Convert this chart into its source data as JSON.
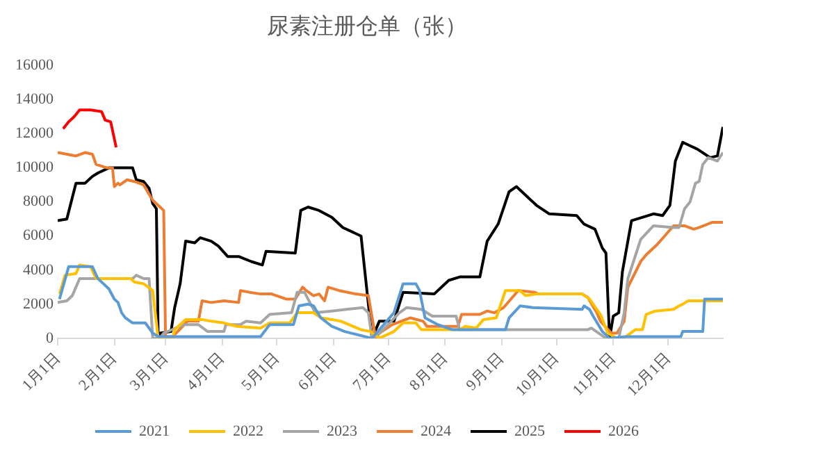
{
  "chart_data": {
    "type": "line",
    "title": "尿素注册仓单（张）",
    "xlim": [
      "--01-01",
      "--12-31"
    ],
    "xticks": [
      {
        "value": "--01-01",
        "label": "1月1日"
      },
      {
        "value": "--02-01",
        "label": "2月1日"
      },
      {
        "value": "--03-01",
        "label": "3月1日"
      },
      {
        "value": "--04-01",
        "label": "4月1日"
      },
      {
        "value": "--05-01",
        "label": "5月1日"
      },
      {
        "value": "--06-01",
        "label": "6月1日"
      },
      {
        "value": "--07-01",
        "label": "7月1日"
      },
      {
        "value": "--08-01",
        "label": "8月1日"
      },
      {
        "value": "--09-01",
        "label": "9月1日"
      },
      {
        "value": "--10-01",
        "label": "10月1日"
      },
      {
        "value": "--11-01",
        "label": "11月1日"
      },
      {
        "value": "--12-01",
        "label": "12月1日"
      }
    ],
    "ylim": [
      0,
      16000
    ],
    "yticks": [
      0,
      2000,
      4000,
      6000,
      8000,
      10000,
      12000,
      14000,
      16000
    ],
    "grid": false,
    "legend": "bottom",
    "line_style": "solid",
    "series": [
      {
        "name": "2021",
        "color": "#5b9bd5",
        "x": [
          "--01-02",
          "--01-07",
          "--01-20",
          "--01-23",
          "--01-26",
          "--01-29",
          "--02-01",
          "--02-03",
          "--02-05",
          "--02-07",
          "--02-11",
          "--02-18",
          "--02-22",
          "--02-25",
          "--04-22",
          "--04-27",
          "--05-10",
          "--05-13",
          "--05-18",
          "--05-21",
          "--05-25",
          "--05-31",
          "--06-07",
          "--06-18",
          "--06-22",
          "--07-04",
          "--07-09",
          "--07-16",
          "--07-18",
          "--07-21",
          "--07-28",
          "--08-05",
          "--09-03",
          "--09-05",
          "--09-11",
          "--09-18",
          "--10-15",
          "--10-16",
          "--10-19",
          "--10-21",
          "--10-26",
          "--10-30",
          "--11-08",
          "--12-08",
          "--12-09",
          "--12-20",
          "--12-21",
          "--12-31"
        ],
        "values": [
          2300,
          4200,
          4200,
          3500,
          3200,
          2900,
          2300,
          2100,
          1500,
          1200,
          900,
          900,
          300,
          100,
          100,
          800,
          800,
          1900,
          2000,
          1900,
          1200,
          700,
          400,
          100,
          0,
          1500,
          3200,
          3200,
          2800,
          1200,
          800,
          500,
          500,
          1200,
          1900,
          1800,
          1700,
          1900,
          1700,
          1300,
          400,
          0,
          100,
          100,
          400,
          400,
          2300,
          2300
        ]
      },
      {
        "name": "2022",
        "color": "#ffc000",
        "x": [
          "--01-02",
          "--01-05",
          "--01-11",
          "--01-13",
          "--01-19",
          "--01-22",
          "--02-10",
          "--02-12",
          "--02-17",
          "--02-22",
          "--02-25",
          "--03-05",
          "--03-06",
          "--03-12",
          "--03-21",
          "--03-26",
          "--04-02",
          "--04-09",
          "--04-22",
          "--04-27",
          "--05-08",
          "--05-12",
          "--05-21",
          "--05-25",
          "--05-31",
          "--06-05",
          "--06-16",
          "--06-21",
          "--06-26",
          "--07-04",
          "--07-09",
          "--07-16",
          "--07-19",
          "--08-09",
          "--08-12",
          "--08-18",
          "--08-22",
          "--08-29",
          "--09-03",
          "--09-11",
          "--09-14",
          "--09-20",
          "--10-15",
          "--10-19",
          "--10-23",
          "--10-25",
          "--10-29",
          "--11-03",
          "--11-08",
          "--11-13",
          "--11-17",
          "--11-19",
          "--11-24",
          "--12-04",
          "--12-07",
          "--12-09",
          "--12-12",
          "--12-31"
        ],
        "values": [
          2600,
          3700,
          3800,
          4300,
          4200,
          3500,
          3500,
          3300,
          3200,
          2800,
          0,
          0,
          500,
          1100,
          1100,
          1000,
          900,
          700,
          600,
          900,
          900,
          1500,
          1500,
          1200,
          1100,
          1000,
          500,
          400,
          0,
          400,
          900,
          900,
          500,
          500,
          700,
          600,
          1100,
          1200,
          2800,
          2800,
          2500,
          2600,
          2600,
          2300,
          1700,
          1400,
          300,
          0,
          100,
          500,
          500,
          1400,
          1600,
          1700,
          1900,
          2000,
          2200,
          2200
        ]
      },
      {
        "name": "2023",
        "color": "#a5a5a5",
        "x": [
          "--01-01",
          "--01-06",
          "--01-09",
          "--01-13",
          "--02-11",
          "--02-13",
          "--02-17",
          "--02-20",
          "--02-22",
          "--02-26",
          "--02-28",
          "--03-11",
          "--03-19",
          "--03-24",
          "--04-02",
          "--04-03",
          "--04-11",
          "--04-14",
          "--04-22",
          "--04-27",
          "--05-09",
          "--05-12",
          "--05-16",
          "--05-22",
          "--05-31",
          "--06-08",
          "--06-17",
          "--06-20",
          "--06-22",
          "--06-28",
          "--07-07",
          "--07-11",
          "--07-19",
          "--07-25",
          "--08-07",
          "--08-09",
          "--10-18",
          "--10-20",
          "--10-28",
          "--11-04",
          "--11-07",
          "--11-09",
          "--11-16",
          "--11-23",
          "--12-04",
          "--12-07",
          "--12-10",
          "--12-13",
          "--12-16",
          "--12-18",
          "--12-20",
          "--12-23",
          "--12-28",
          "--12-31"
        ],
        "values": [
          2100,
          2200,
          2500,
          3500,
          3500,
          3700,
          3500,
          3500,
          0,
          0,
          300,
          800,
          800,
          400,
          400,
          800,
          800,
          1000,
          900,
          1400,
          1500,
          2700,
          2700,
          1500,
          1600,
          1700,
          1800,
          1500,
          0,
          500,
          1500,
          1800,
          1700,
          1300,
          1300,
          500,
          500,
          600,
          0,
          0,
          1500,
          3500,
          5800,
          6600,
          6500,
          6500,
          7600,
          8000,
          9100,
          9200,
          10200,
          10600,
          10400,
          10900
        ]
      },
      {
        "name": "2024",
        "color": "#ed7d31",
        "x": [
          "--01-01",
          "--01-11",
          "--01-16",
          "--01-20",
          "--01-22",
          "--01-28",
          "--01-31",
          "--02-01",
          "--02-03",
          "--02-04",
          "--02-08",
          "--02-12",
          "--02-17",
          "--02-22",
          "--02-25",
          "--02-28",
          "--03-01",
          "--03-05",
          "--03-13",
          "--03-19",
          "--03-21",
          "--03-26",
          "--04-02",
          "--04-10",
          "--04-11",
          "--04-16",
          "--04-22",
          "--04-28",
          "--05-06",
          "--05-11",
          "--05-15",
          "--05-17",
          "--05-21",
          "--05-24",
          "--05-27",
          "--05-29",
          "--06-04",
          "--06-13",
          "--06-20",
          "--06-24",
          "--06-26",
          "--07-03",
          "--07-13",
          "--07-20",
          "--07-22",
          "--08-08",
          "--08-10",
          "--08-20",
          "--08-24",
          "--08-28",
          "--09-02",
          "--09-10",
          "--09-19",
          "--09-21",
          "--10-15",
          "--10-18",
          "--10-23",
          "--10-25",
          "--10-31",
          "--11-03",
          "--11-07",
          "--11-09",
          "--11-16",
          "--11-19",
          "--11-25",
          "--12-04",
          "--12-10",
          "--12-15",
          "--12-18",
          "--12-25",
          "--12-31"
        ],
        "values": [
          10900,
          10700,
          10900,
          10800,
          10200,
          10000,
          10000,
          8900,
          9100,
          9000,
          9300,
          9200,
          9000,
          8100,
          7800,
          7500,
          100,
          100,
          1000,
          1000,
          2200,
          2100,
          2200,
          2100,
          2800,
          2700,
          2600,
          2600,
          2300,
          2300,
          3000,
          2800,
          2500,
          2600,
          2200,
          3000,
          2800,
          2600,
          2500,
          0,
          300,
          800,
          1200,
          1000,
          700,
          700,
          1400,
          1400,
          1600,
          1500,
          1800,
          2800,
          2700,
          2600,
          2600,
          2400,
          1500,
          1000,
          300,
          300,
          1000,
          3000,
          4500,
          4900,
          5500,
          6600,
          6600,
          6400,
          6500,
          6800,
          6800
        ]
      },
      {
        "name": "2025",
        "color": "#000000",
        "x": [
          "--01-01",
          "--01-06",
          "--01-11",
          "--01-16",
          "--01-20",
          "--01-23",
          "--01-29",
          "--02-11",
          "--02-13",
          "--02-17",
          "--02-20",
          "--02-22",
          "--02-24",
          "--02-25",
          "--02-26",
          "--03-04",
          "--03-06",
          "--03-09",
          "--03-12",
          "--03-17",
          "--03-20",
          "--03-26",
          "--03-30",
          "--04-04",
          "--04-10",
          "--04-17",
          "--04-23",
          "--04-25",
          "--05-11",
          "--05-14",
          "--05-18",
          "--05-24",
          "--05-31",
          "--06-06",
          "--06-16",
          "--06-19",
          "--06-22",
          "--06-26",
          "--07-04",
          "--07-09",
          "--07-26",
          "--08-03",
          "--08-09",
          "--08-20",
          "--08-24",
          "--08-30",
          "--09-05",
          "--09-09",
          "--09-20",
          "--09-27",
          "--10-12",
          "--10-16",
          "--10-22",
          "--10-26",
          "--10-28",
          "--10-30",
          "--11-01",
          "--11-04",
          "--11-06",
          "--11-11",
          "--11-23",
          "--11-28",
          "--12-02",
          "--12-05",
          "--12-09",
          "--12-13",
          "--12-17",
          "--12-24",
          "--12-28",
          "--12-31"
        ],
        "values": [
          6900,
          7000,
          9100,
          9100,
          9500,
          9700,
          10000,
          10000,
          9300,
          9200,
          8800,
          7900,
          7600,
          0,
          300,
          400,
          1800,
          3200,
          5700,
          5600,
          5900,
          5700,
          5400,
          4800,
          4800,
          4500,
          4300,
          5100,
          5000,
          7500,
          7700,
          7500,
          7100,
          6500,
          6000,
          3000,
          0,
          1000,
          1000,
          2700,
          2600,
          3400,
          3600,
          3600,
          5700,
          6700,
          8600,
          8900,
          7800,
          7300,
          7200,
          6700,
          6400,
          5300,
          5000,
          0,
          1300,
          1500,
          3900,
          6900,
          7300,
          7200,
          7800,
          10400,
          11500,
          11300,
          11100,
          10600,
          10700,
          12400
        ]
      },
      {
        "name": "2026",
        "color": "#ff0000",
        "x": [
          "--01-04",
          "--01-07",
          "--01-10",
          "--01-13",
          "--01-19",
          "--01-25",
          "--01-27",
          "--01-30",
          "--02-02"
        ],
        "values": [
          12300,
          12700,
          13000,
          13400,
          13400,
          13300,
          12800,
          12700,
          11200
        ]
      }
    ]
  }
}
